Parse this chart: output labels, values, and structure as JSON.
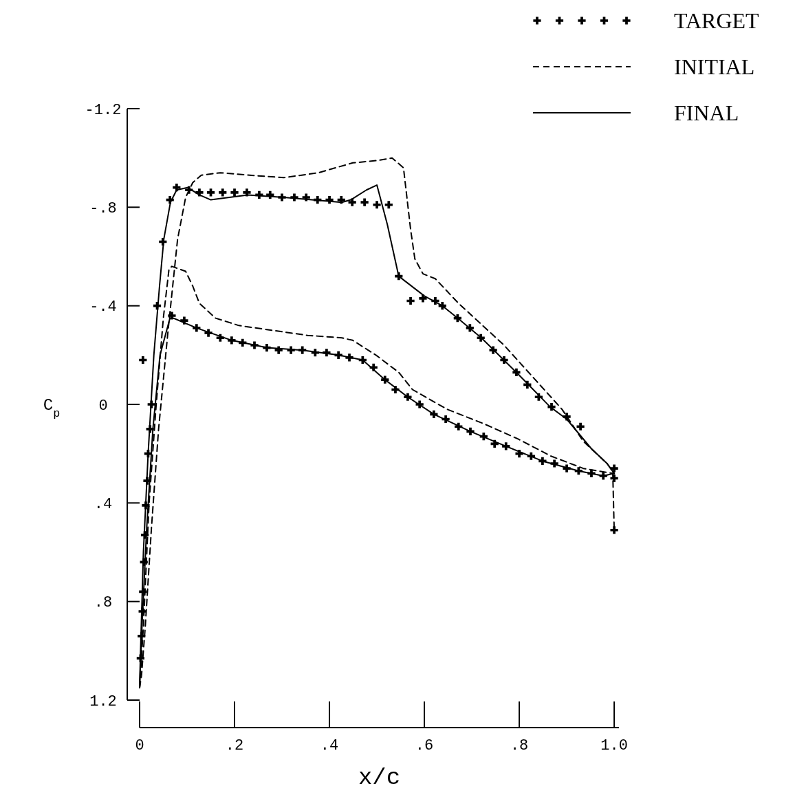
{
  "chart_data": {
    "type": "line",
    "xlabel": "x/c",
    "ylabel": "C$_{p}$",
    "xlim": [
      0,
      1.01
    ],
    "ylim": [
      1.2,
      -1.2
    ],
    "xticks": [
      0,
      {
        "value": 0.2,
        "label": ".2"
      },
      {
        "value": 0.4,
        "label": ".4"
      },
      {
        "value": 0.6,
        "label": ".6"
      },
      {
        "value": 0.8,
        "label": ".8"
      },
      {
        "value": 1.0,
        "label": "1.0"
      }
    ],
    "yticks": [
      {
        "value": -1.2,
        "label": "-1.2"
      },
      {
        "value": -0.8,
        "label": "-.8"
      },
      {
        "value": -0.4,
        "label": "-.4"
      },
      0,
      {
        "value": 0.4,
        "label": ".4"
      },
      {
        "value": 0.8,
        "label": ".8"
      },
      {
        "value": 1.2,
        "label": "1.2"
      }
    ],
    "legend": "top right",
    "grid": false,
    "series": [
      {
        "name": "TARGET",
        "type": "scatter",
        "marker": "cross",
        "color": "#000000",
        "x": [
          1.0,
          0.929,
          0.9,
          0.868,
          0.841,
          0.817,
          0.794,
          0.768,
          0.745,
          0.719,
          0.696,
          0.67,
          0.638,
          0.623,
          0.597,
          0.571,
          0.546,
          0.525,
          0.5,
          0.474,
          0.448,
          0.425,
          0.4,
          0.375,
          0.351,
          0.326,
          0.3,
          0.275,
          0.252,
          0.226,
          0.2,
          0.175,
          0.15,
          0.126,
          0.104,
          0.078,
          0.064,
          0.049,
          0.037,
          0.007,
          0.025,
          0.022,
          0.018,
          0.016,
          0.013,
          0.011,
          0.009,
          0.007,
          0.006,
          0.004,
          0.002,
          0.068,
          0.094,
          0.12,
          0.145,
          0.17,
          0.194,
          0.217,
          0.242,
          0.268,
          0.293,
          0.319,
          0.343,
          0.37,
          0.394,
          0.419,
          0.442,
          0.47,
          0.493,
          0.517,
          0.539,
          0.565,
          0.59,
          0.62,
          0.645,
          0.672,
          0.697,
          0.725,
          0.748,
          0.772,
          0.8,
          0.825,
          0.849,
          0.874,
          0.9,
          0.925,
          0.952,
          0.977,
          1.0,
          1.0
        ],
        "values": [
          0.26,
          0.09,
          0.05,
          0.01,
          -0.03,
          -0.08,
          -0.13,
          -0.18,
          -0.22,
          -0.27,
          -0.31,
          -0.35,
          -0.4,
          -0.42,
          -0.43,
          -0.42,
          -0.52,
          -0.81,
          -0.81,
          -0.82,
          -0.82,
          -0.83,
          -0.83,
          -0.83,
          -0.84,
          -0.84,
          -0.84,
          -0.85,
          -0.85,
          -0.86,
          -0.86,
          -0.86,
          -0.86,
          -0.86,
          -0.87,
          -0.88,
          -0.83,
          -0.66,
          -0.4,
          -0.18,
          0,
          0.1,
          0.2,
          0.31,
          0.41,
          0.53,
          0.64,
          0.76,
          0.84,
          0.94,
          1.03,
          -0.36,
          -0.34,
          -0.31,
          -0.29,
          -0.27,
          -0.26,
          -0.25,
          -0.24,
          -0.23,
          -0.22,
          -0.22,
          -0.22,
          -0.21,
          -0.21,
          -0.2,
          -0.19,
          -0.18,
          -0.15,
          -0.1,
          -0.06,
          -0.03,
          0.0,
          0.04,
          0.06,
          0.09,
          0.11,
          0.13,
          0.16,
          0.17,
          0.2,
          0.21,
          0.23,
          0.24,
          0.26,
          0.27,
          0.28,
          0.29,
          0.3,
          0.51
        ]
      },
      {
        "name": "INITIAL",
        "line_style": "dashed",
        "color": "#000000",
        "x": [
          0,
          0.004,
          0.012,
          0.025,
          0.04,
          0.06,
          0.08,
          0.097,
          0.112,
          0.13,
          0.17,
          0.232,
          0.304,
          0.377,
          0.449,
          0.503,
          0.532,
          0.556,
          0.571,
          0.58,
          0.597,
          0.623,
          0.672,
          0.768,
          0.89,
          0.935,
          0.985,
          1.0
        ],
        "values": [
          1.15,
          1.1,
          0.9,
          0.5,
          0.1,
          -0.3,
          -0.67,
          -0.84,
          -0.9,
          -0.93,
          -0.94,
          -0.93,
          -0.92,
          -0.94,
          -0.98,
          -0.99,
          -1.0,
          -0.96,
          -0.71,
          -0.59,
          -0.53,
          -0.51,
          -0.41,
          -0.24,
          0.02,
          0.15,
          0.24,
          0.28
        ]
      },
      {
        "line_style": "dashed",
        "color": "#000000",
        "x": [
          0,
          0.008,
          0.02,
          0.035,
          0.05,
          0.062,
          0.068,
          0.097,
          0.112,
          0.126,
          0.16,
          0.209,
          0.281,
          0.354,
          0.426,
          0.449,
          0.498,
          0.546,
          0.575,
          0.648,
          0.727,
          0.797,
          0.867,
          0.935,
          0.997,
          1.0
        ],
        "values": [
          1.15,
          0.9,
          0.4,
          0,
          -0.35,
          -0.55,
          -0.56,
          -0.54,
          -0.48,
          -0.41,
          -0.35,
          -0.32,
          -0.3,
          -0.28,
          -0.27,
          -0.26,
          -0.2,
          -0.13,
          -0.06,
          0.02,
          0.08,
          0.14,
          0.21,
          0.26,
          0.28,
          0.51
        ]
      },
      {
        "name": "FINAL",
        "line_style": "solid",
        "color": "#000000",
        "x": [
          0,
          0.002,
          0.008,
          0.018,
          0.03,
          0.042,
          0.051,
          0.065,
          0.078,
          0.101,
          0.126,
          0.15,
          0.228,
          0.304,
          0.426,
          0.445,
          0.478,
          0.5,
          0.522,
          0.546,
          0.6,
          0.638,
          0.67,
          0.72,
          0.794,
          0.865,
          0.9,
          0.952,
          0.985,
          1.0
        ],
        "values": [
          1.15,
          1.0,
          0.6,
          0.2,
          -0.2,
          -0.48,
          -0.67,
          -0.82,
          -0.87,
          -0.88,
          -0.85,
          -0.83,
          -0.85,
          -0.84,
          -0.82,
          -0.83,
          -0.87,
          -0.89,
          -0.73,
          -0.52,
          -0.44,
          -0.4,
          -0.35,
          -0.27,
          -0.13,
          0.01,
          0.06,
          0.18,
          0.24,
          0.28
        ]
      },
      {
        "line_style": "solid",
        "color": "#000000",
        "x": [
          0,
          0.005,
          0.015,
          0.028,
          0.043,
          0.064,
          0.071,
          0.12,
          0.194,
          0.268,
          0.343,
          0.419,
          0.47,
          0.517,
          0.565,
          0.62,
          0.697,
          0.772,
          0.849,
          0.925,
          0.977,
          1.0
        ],
        "values": [
          1.15,
          0.9,
          0.5,
          0.1,
          -0.2,
          -0.35,
          -0.35,
          -0.31,
          -0.26,
          -0.23,
          -0.22,
          -0.2,
          -0.18,
          -0.1,
          -0.03,
          0.04,
          0.11,
          0.17,
          0.23,
          0.27,
          0.29,
          0.28
        ]
      }
    ]
  }
}
